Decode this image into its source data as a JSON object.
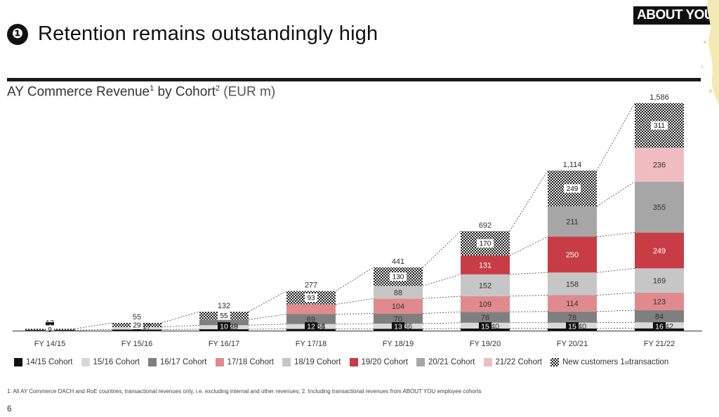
{
  "header": {
    "bullet": "❶",
    "title": "Retention remains outstandingly high",
    "logo_text": "ABOUT YOU°"
  },
  "chart_title": {
    "main": "AY Commerce Revenue",
    "sup1": "1",
    "by": " by Cohort",
    "sup2": "2",
    "unit": " (EUR m)"
  },
  "colors": {
    "c1415": "#111111",
    "c1516": "#d9d9d9",
    "c1617": "#7f7f7f",
    "c1718": "#e08a8d",
    "c1819": "#c6c6c6",
    "c1920": "#c83c46",
    "c2021": "#a6a6a6",
    "c2122": "#efbcbf",
    "new": "checker"
  },
  "chart_data": {
    "type": "bar",
    "stacked": true,
    "categories": [
      "FY 14/15",
      "FY 15/16",
      "FY 16/17",
      "FY 17/18",
      "FY 18/19",
      "FY 19/20",
      "FY 20/21",
      "FY 21/22"
    ],
    "series": [
      {
        "name": "14/15 Cohort",
        "color": "#111111",
        "values": [
          4,
          8,
          10,
          12,
          13,
          15,
          15,
          16
        ]
      },
      {
        "name": "15/16 Cohort",
        "color": "#d9d9d9",
        "values": [
          null,
          17,
          28,
          34,
          36,
          40,
          40,
          42
        ]
      },
      {
        "name": "16/17 Cohort",
        "color": "#7f7f7f",
        "values": [
          null,
          null,
          39,
          69,
          70,
          76,
          78,
          84
        ]
      },
      {
        "name": "17/18 Cohort",
        "color": "#e08a8d",
        "values": [
          null,
          null,
          null,
          68,
          104,
          109,
          114,
          123
        ]
      },
      {
        "name": "18/19 Cohort",
        "color": "#c6c6c6",
        "values": [
          null,
          null,
          null,
          null,
          88,
          152,
          158,
          169
        ]
      },
      {
        "name": "19/20 Cohort",
        "color": "#c83c46",
        "values": [
          null,
          null,
          null,
          null,
          null,
          131,
          250,
          249
        ]
      },
      {
        "name": "20/21 Cohort",
        "color": "#a6a6a6",
        "values": [
          null,
          null,
          null,
          null,
          null,
          null,
          211,
          355
        ]
      },
      {
        "name": "21/22 Cohort",
        "color": "#efbcbf",
        "values": [
          null,
          null,
          null,
          null,
          null,
          null,
          null,
          236
        ]
      },
      {
        "name": "New customers 1st transaction",
        "color": "checker",
        "values": [
          9,
          29,
          55,
          93,
          130,
          170,
          249,
          311
        ]
      }
    ],
    "totals": [
      "13",
      "55",
      "132",
      "277",
      "441",
      "692",
      "1,114",
      "1,586"
    ],
    "ylim": [
      0,
      1586
    ],
    "grid": false,
    "legend": "bottom"
  },
  "legend_labels": {
    "c1415": "14/15 Cohort",
    "c1516": "15/16 Cohort",
    "c1617": "16/17 Cohort",
    "c1718": "17/18 Cohort",
    "c1819": "18/19 Cohort",
    "c1920": "19/20 Cohort",
    "c2021": "20/21 Cohort",
    "c2122": "21/22 Cohort",
    "new_main": "New customers 1",
    "new_sup": "st",
    "new_tail": " transaction"
  },
  "footnote": "1. All AY Commerce DACH and RoE countries, transactional revenues only, i.e. excluding internal and other revenues; 2. Including transactional revenues from ABOUT YOU employee cohorts",
  "page_number": "6"
}
